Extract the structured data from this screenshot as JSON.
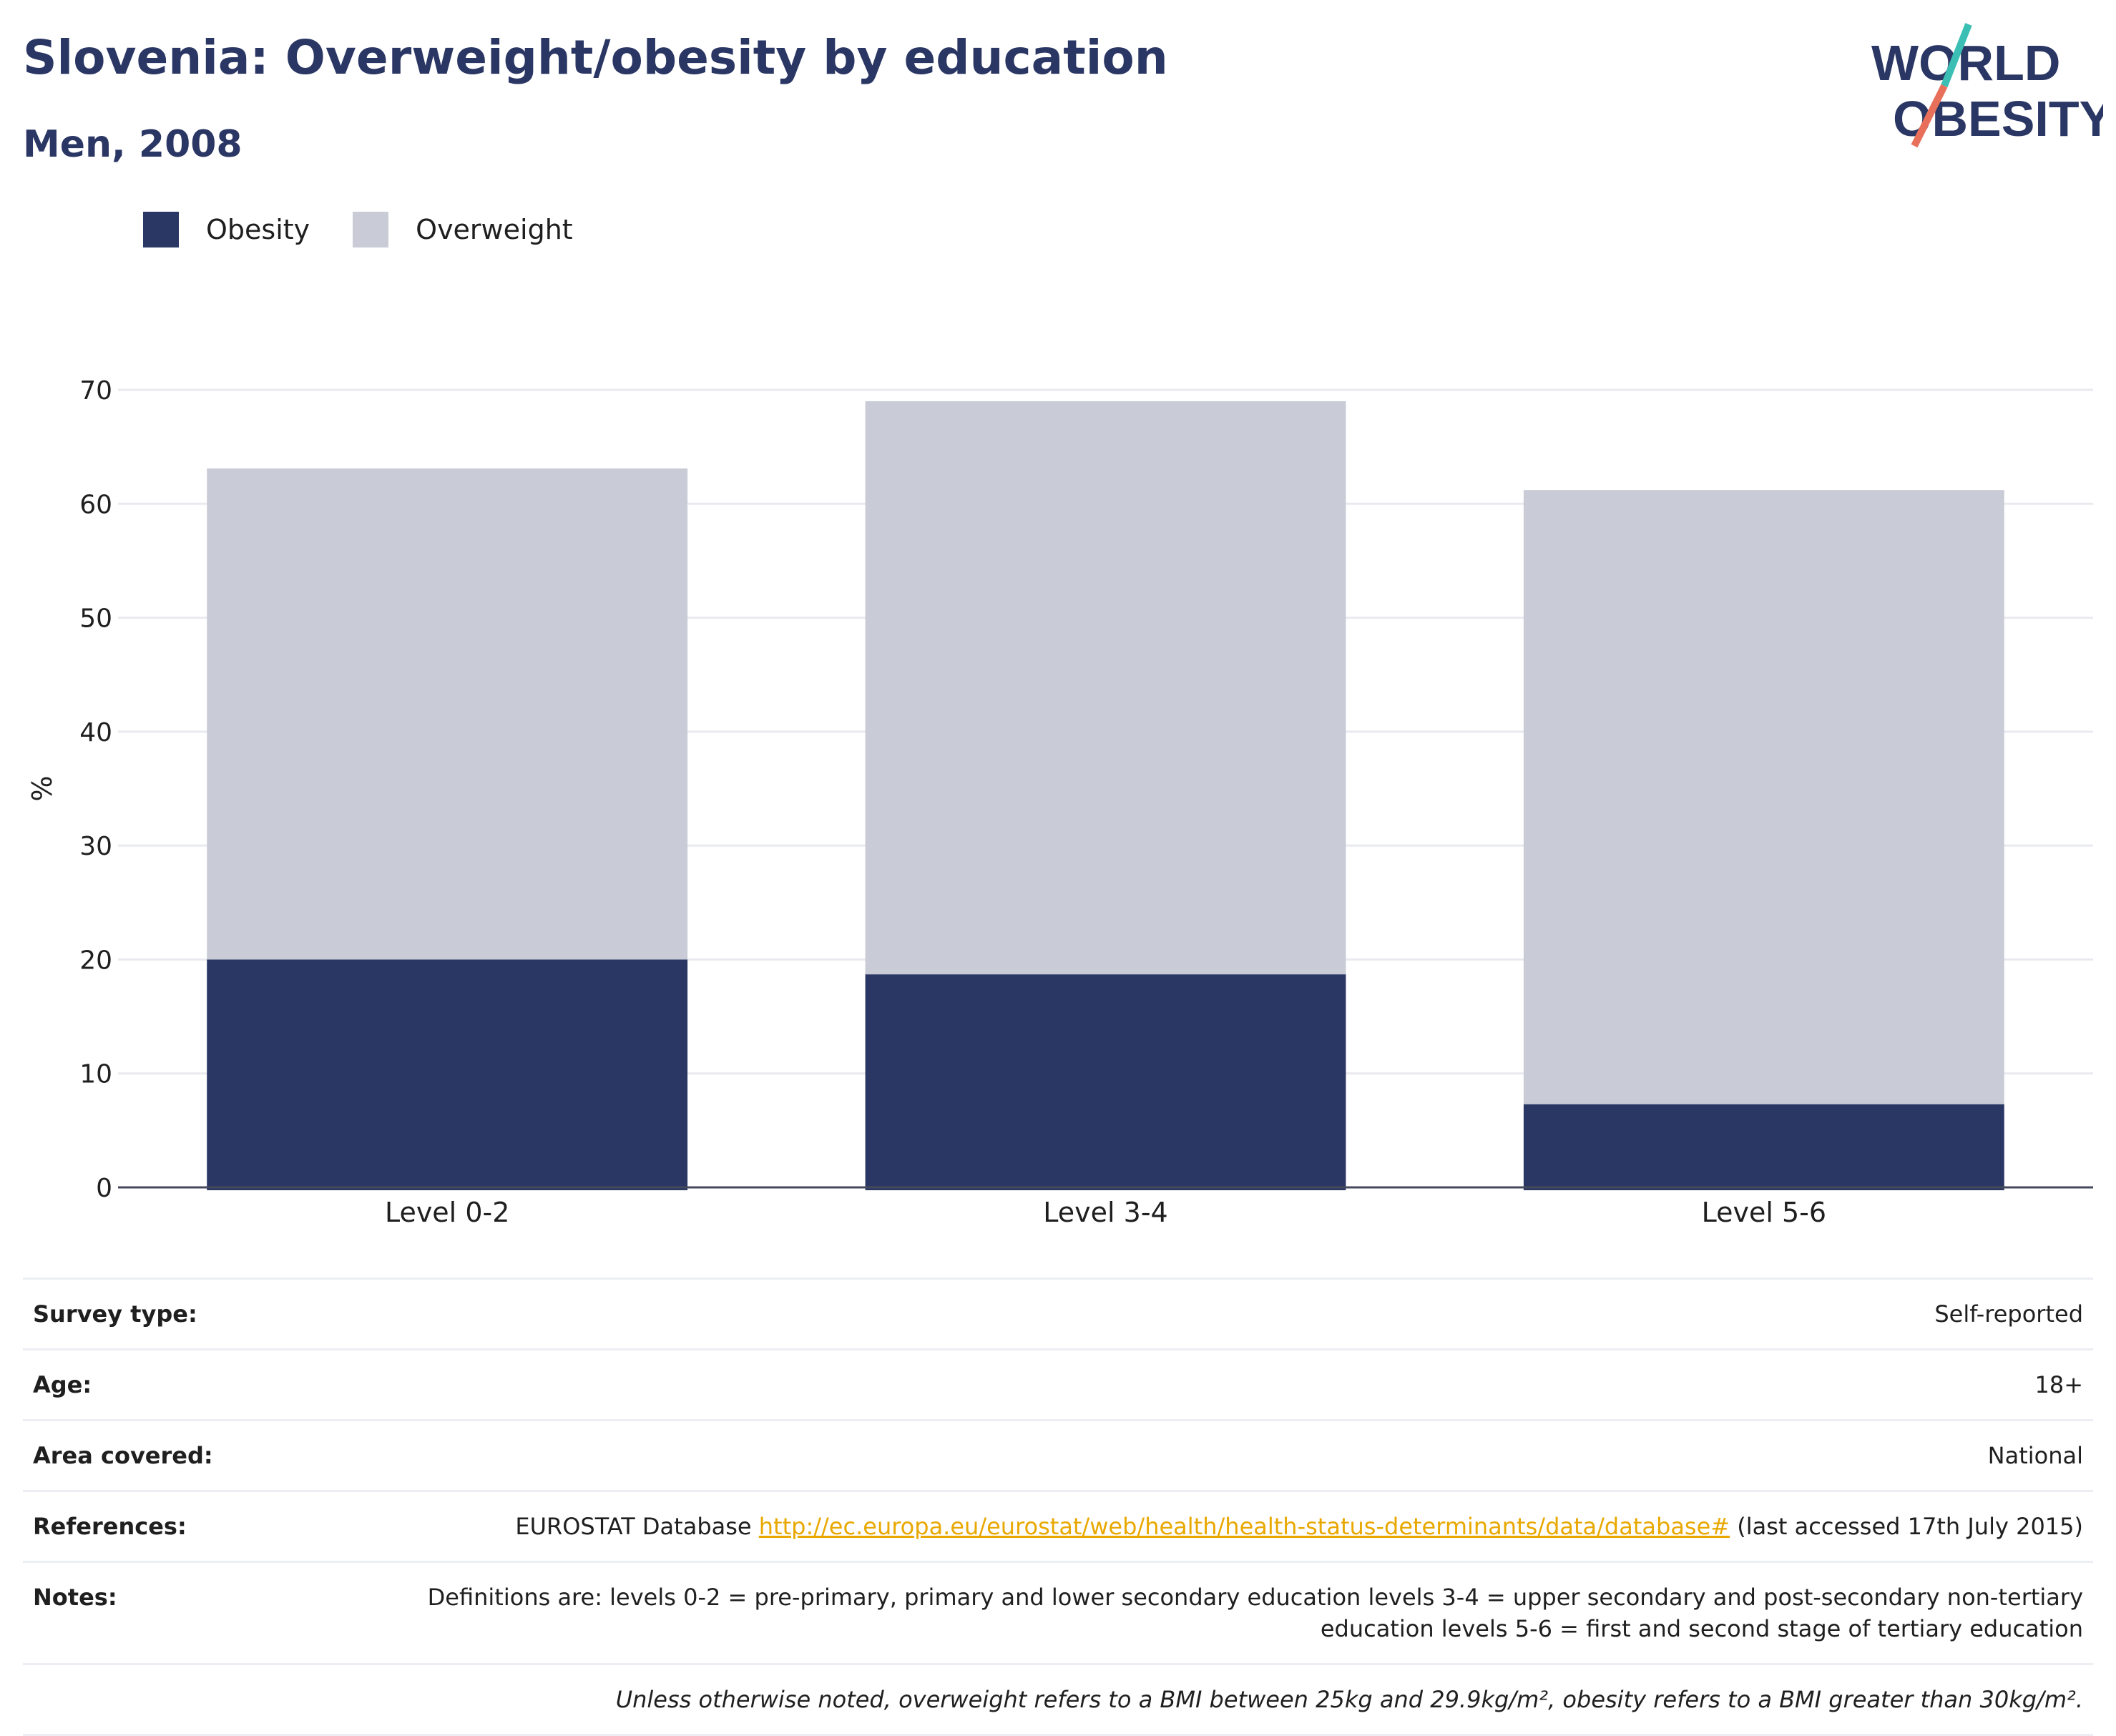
{
  "header": {
    "title": "Slovenia: Overweight/obesity by education",
    "subtitle": "Men, 2008"
  },
  "logo": {
    "line1": "WORLD",
    "line2": "OBESITY",
    "text_color": "#2a3663",
    "accent_teal": "#3bbfb4",
    "accent_coral": "#e8705a"
  },
  "legend": [
    {
      "label": "Obesity",
      "color": "#2a3663"
    },
    {
      "label": "Overweight",
      "color": "#c9cbd6"
    }
  ],
  "chart_data": {
    "type": "bar",
    "stacked": true,
    "categories": [
      "Level 0-2",
      "Level 3-4",
      "Level 5-6"
    ],
    "series": [
      {
        "name": "Obesity",
        "color": "#2a3663",
        "values": [
          20.0,
          18.7,
          7.3
        ]
      },
      {
        "name": "Overweight",
        "color": "#c9cbd6",
        "values": [
          43.1,
          50.3,
          53.9
        ]
      }
    ],
    "totals": [
      63.1,
      69.0,
      61.2
    ],
    "ylabel": "%",
    "ylim": [
      0,
      70
    ],
    "yticks": [
      0,
      10,
      20,
      30,
      40,
      50,
      60,
      70
    ],
    "grid": true,
    "legend_position": "top-left"
  },
  "info": {
    "survey_type": {
      "label": "Survey type:",
      "value": "Self-reported"
    },
    "age": {
      "label": "Age:",
      "value": "18+"
    },
    "area": {
      "label": "Area covered:",
      "value": "National"
    },
    "references": {
      "label": "References:",
      "prefix": "EUROSTAT Database ",
      "link": "http://ec.europa.eu/eurostat/web/health/health-status-determinants/data/database#",
      "suffix": " (last accessed 17th July 2015)"
    },
    "notes": {
      "label": "Notes:",
      "value": "Definitions are: levels 0-2 = pre-primary, primary and lower secondary education levels 3-4 = upper secondary and post-secondary non-tertiary education levels 5-6 = first and second stage of tertiary education"
    },
    "footnote": "Unless otherwise noted, overweight refers to a BMI between 25kg and 29.9kg/m², obesity refers to a BMI greater than 30kg/m²."
  }
}
